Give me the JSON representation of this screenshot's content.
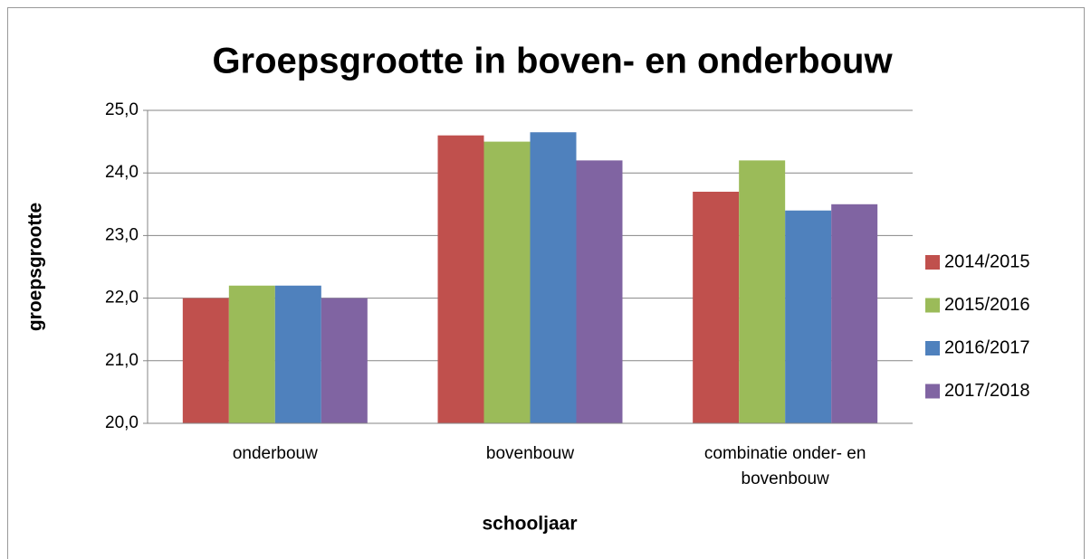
{
  "chart_data": {
    "type": "bar",
    "title": "Groepsgrootte in boven- en onderbouw",
    "xlabel": "schooljaar",
    "ylabel": "groepsgrootte",
    "categories": [
      "onderbouw",
      "bovenbouw",
      "combinatie onder- en bovenbouw"
    ],
    "series": [
      {
        "name": "2014/2015",
        "color": "#c0504d",
        "values": [
          22.0,
          24.6,
          23.7
        ]
      },
      {
        "name": "2015/2016",
        "color": "#9bbb59",
        "values": [
          22.2,
          24.5,
          24.2
        ]
      },
      {
        "name": "2016/2017",
        "color": "#4f81bd",
        "values": [
          22.2,
          24.65,
          23.4
        ]
      },
      {
        "name": "2017/2018",
        "color": "#8064a2",
        "values": [
          22.0,
          24.2,
          23.5
        ]
      }
    ],
    "ylim": [
      20,
      25
    ],
    "yticks": [
      {
        "value": 20,
        "label": "20,0"
      },
      {
        "value": 21,
        "label": "21,0"
      },
      {
        "value": 22,
        "label": "22,0"
      },
      {
        "value": 23,
        "label": "23,0"
      },
      {
        "value": 24,
        "label": "24,0"
      },
      {
        "value": 25,
        "label": "25,0"
      }
    ],
    "grid": true,
    "legend": "right"
  }
}
